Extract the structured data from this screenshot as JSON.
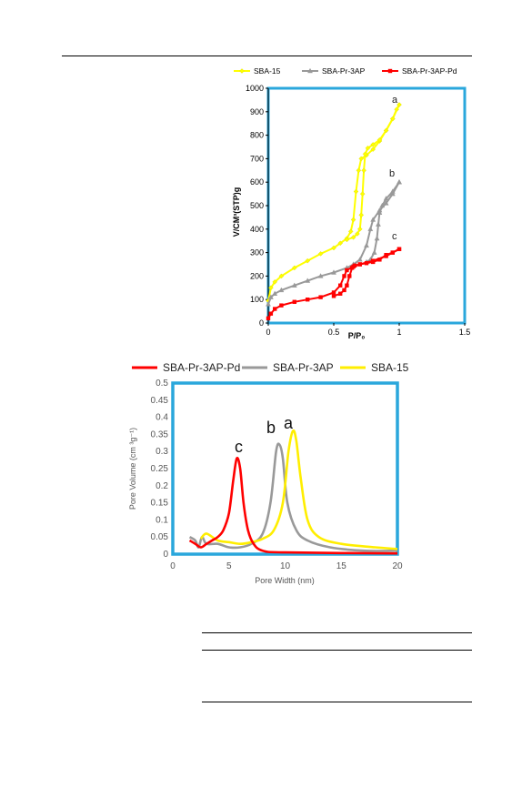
{
  "chart_data": [
    {
      "type": "line",
      "xlabel": "P/P₀",
      "ylabel": "V/CM³(STP)g",
      "xlim": [
        0,
        1.5
      ],
      "ylim": [
        0,
        1000
      ],
      "x_ticks": [
        "0",
        "0.5",
        "1",
        "1.5"
      ],
      "y_ticks": [
        "0",
        "100",
        "200",
        "300",
        "400",
        "500",
        "600",
        "700",
        "800",
        "900",
        "1000"
      ],
      "legend_position": "top",
      "grid": false,
      "annotations": [
        "a",
        "b",
        "c"
      ],
      "series": [
        {
          "name": "SBA-15",
          "color": "#ffff00",
          "marker": "diamond",
          "adsorption": [
            [
              0,
              95
            ],
            [
              0.02,
              150
            ],
            [
              0.05,
              175
            ],
            [
              0.1,
              200
            ],
            [
              0.2,
              235
            ],
            [
              0.3,
              265
            ],
            [
              0.4,
              295
            ],
            [
              0.5,
              320
            ],
            [
              0.55,
              340
            ],
            [
              0.6,
              360
            ],
            [
              0.63,
              390
            ],
            [
              0.65,
              440
            ],
            [
              0.67,
              560
            ],
            [
              0.69,
              650
            ],
            [
              0.71,
              700
            ],
            [
              0.75,
              715
            ],
            [
              0.8,
              740
            ],
            [
              0.85,
              775
            ],
            [
              0.9,
              820
            ],
            [
              0.95,
              870
            ],
            [
              0.98,
              910
            ],
            [
              1.0,
              930
            ]
          ],
          "desorption": [
            [
              1.0,
              930
            ],
            [
              0.95,
              870
            ],
            [
              0.9,
              820
            ],
            [
              0.85,
              780
            ],
            [
              0.8,
              760
            ],
            [
              0.76,
              745
            ],
            [
              0.74,
              720
            ],
            [
              0.73,
              650
            ],
            [
              0.72,
              550
            ],
            [
              0.71,
              460
            ],
            [
              0.7,
              400
            ],
            [
              0.68,
              380
            ],
            [
              0.65,
              365
            ],
            [
              0.6,
              355
            ]
          ]
        },
        {
          "name": "SBA-Pr-3AP",
          "color": "#999999",
          "marker": "triangle",
          "adsorption": [
            [
              0,
              80
            ],
            [
              0.02,
              110
            ],
            [
              0.05,
              125
            ],
            [
              0.1,
              140
            ],
            [
              0.2,
              160
            ],
            [
              0.3,
              180
            ],
            [
              0.4,
              200
            ],
            [
              0.5,
              215
            ],
            [
              0.6,
              235
            ],
            [
              0.65,
              250
            ],
            [
              0.7,
              270
            ],
            [
              0.75,
              330
            ],
            [
              0.78,
              400
            ],
            [
              0.8,
              440
            ],
            [
              0.85,
              480
            ],
            [
              0.9,
              510
            ],
            [
              0.95,
              550
            ],
            [
              1.0,
              600
            ]
          ],
          "desorption": [
            [
              1.0,
              600
            ],
            [
              0.95,
              560
            ],
            [
              0.9,
              530
            ],
            [
              0.87,
              500
            ],
            [
              0.85,
              470
            ],
            [
              0.84,
              420
            ],
            [
              0.83,
              360
            ],
            [
              0.81,
              300
            ],
            [
              0.78,
              270
            ],
            [
              0.75,
              260
            ]
          ]
        },
        {
          "name": "SBA-Pr-3AP-Pd",
          "color": "#ff0000",
          "marker": "square",
          "adsorption": [
            [
              0,
              20
            ],
            [
              0.02,
              40
            ],
            [
              0.05,
              60
            ],
            [
              0.1,
              75
            ],
            [
              0.2,
              90
            ],
            [
              0.3,
              100
            ],
            [
              0.4,
              110
            ],
            [
              0.5,
              130
            ],
            [
              0.55,
              160
            ],
            [
              0.58,
              200
            ],
            [
              0.6,
              225
            ],
            [
              0.65,
              240
            ],
            [
              0.7,
              250
            ],
            [
              0.8,
              265
            ],
            [
              0.9,
              285
            ],
            [
              0.95,
              300
            ],
            [
              1.0,
              315
            ]
          ],
          "desorption": [
            [
              1.0,
              315
            ],
            [
              0.95,
              300
            ],
            [
              0.9,
              290
            ],
            [
              0.85,
              270
            ],
            [
              0.8,
              260
            ],
            [
              0.75,
              255
            ],
            [
              0.7,
              250
            ],
            [
              0.66,
              245
            ],
            [
              0.64,
              235
            ],
            [
              0.62,
              200
            ],
            [
              0.6,
              160
            ],
            [
              0.58,
              140
            ],
            [
              0.55,
              125
            ],
            [
              0.5,
              115
            ]
          ]
        }
      ]
    },
    {
      "type": "line",
      "xlabel": "Pore Width (nm)",
      "ylabel": "Pore Volume (cm ³g⁻¹)",
      "xlim": [
        0,
        20
      ],
      "ylim": [
        0,
        0.5
      ],
      "x_ticks": [
        "0",
        "5",
        "10",
        "15",
        "20"
      ],
      "y_ticks": [
        "0",
        "0.05",
        "0.1",
        "0.15",
        "0.2",
        "0.25",
        "0.3",
        "0.35",
        "0.4",
        "0.45",
        "0.5"
      ],
      "legend_position": "top",
      "grid": false,
      "annotations": [
        "c",
        "b",
        "a"
      ],
      "series": [
        {
          "name": "SBA-Pr-3AP-Pd",
          "color": "#ff0000",
          "points": [
            [
              1.5,
              0.04
            ],
            [
              2.0,
              0.03
            ],
            [
              2.5,
              0.02
            ],
            [
              3,
              0.03
            ],
            [
              3.5,
              0.04
            ],
            [
              4,
              0.05
            ],
            [
              4.5,
              0.07
            ],
            [
              5,
              0.12
            ],
            [
              5.4,
              0.22
            ],
            [
              5.7,
              0.28
            ],
            [
              6.0,
              0.25
            ],
            [
              6.3,
              0.15
            ],
            [
              6.7,
              0.07
            ],
            [
              7.2,
              0.03
            ],
            [
              8,
              0.01
            ],
            [
              10,
              0.005
            ],
            [
              20,
              0.002
            ]
          ]
        },
        {
          "name": "SBA-Pr-3AP",
          "color": "#999999",
          "points": [
            [
              1.5,
              0.05
            ],
            [
              2.0,
              0.04
            ],
            [
              2.3,
              0.02
            ],
            [
              2.6,
              0.05
            ],
            [
              3,
              0.03
            ],
            [
              4,
              0.03
            ],
            [
              5,
              0.02
            ],
            [
              6,
              0.02
            ],
            [
              7,
              0.03
            ],
            [
              8,
              0.06
            ],
            [
              8.7,
              0.15
            ],
            [
              9.2,
              0.3
            ],
            [
              9.5,
              0.32
            ],
            [
              9.8,
              0.28
            ],
            [
              10.2,
              0.15
            ],
            [
              11,
              0.07
            ],
            [
              12,
              0.04
            ],
            [
              14,
              0.02
            ],
            [
              17,
              0.01
            ],
            [
              20,
              0.01
            ]
          ]
        },
        {
          "name": "SBA-15",
          "color": "#ffff00",
          "points": [
            [
              2.5,
              0.045
            ],
            [
              3,
              0.06
            ],
            [
              4,
              0.04
            ],
            [
              5,
              0.035
            ],
            [
              6,
              0.03
            ],
            [
              7,
              0.035
            ],
            [
              8,
              0.045
            ],
            [
              9,
              0.07
            ],
            [
              9.8,
              0.15
            ],
            [
              10.3,
              0.3
            ],
            [
              10.7,
              0.36
            ],
            [
              11.0,
              0.33
            ],
            [
              11.4,
              0.22
            ],
            [
              12,
              0.1
            ],
            [
              13,
              0.05
            ],
            [
              15,
              0.03
            ],
            [
              18,
              0.02
            ],
            [
              20,
              0.015
            ]
          ]
        }
      ]
    }
  ]
}
